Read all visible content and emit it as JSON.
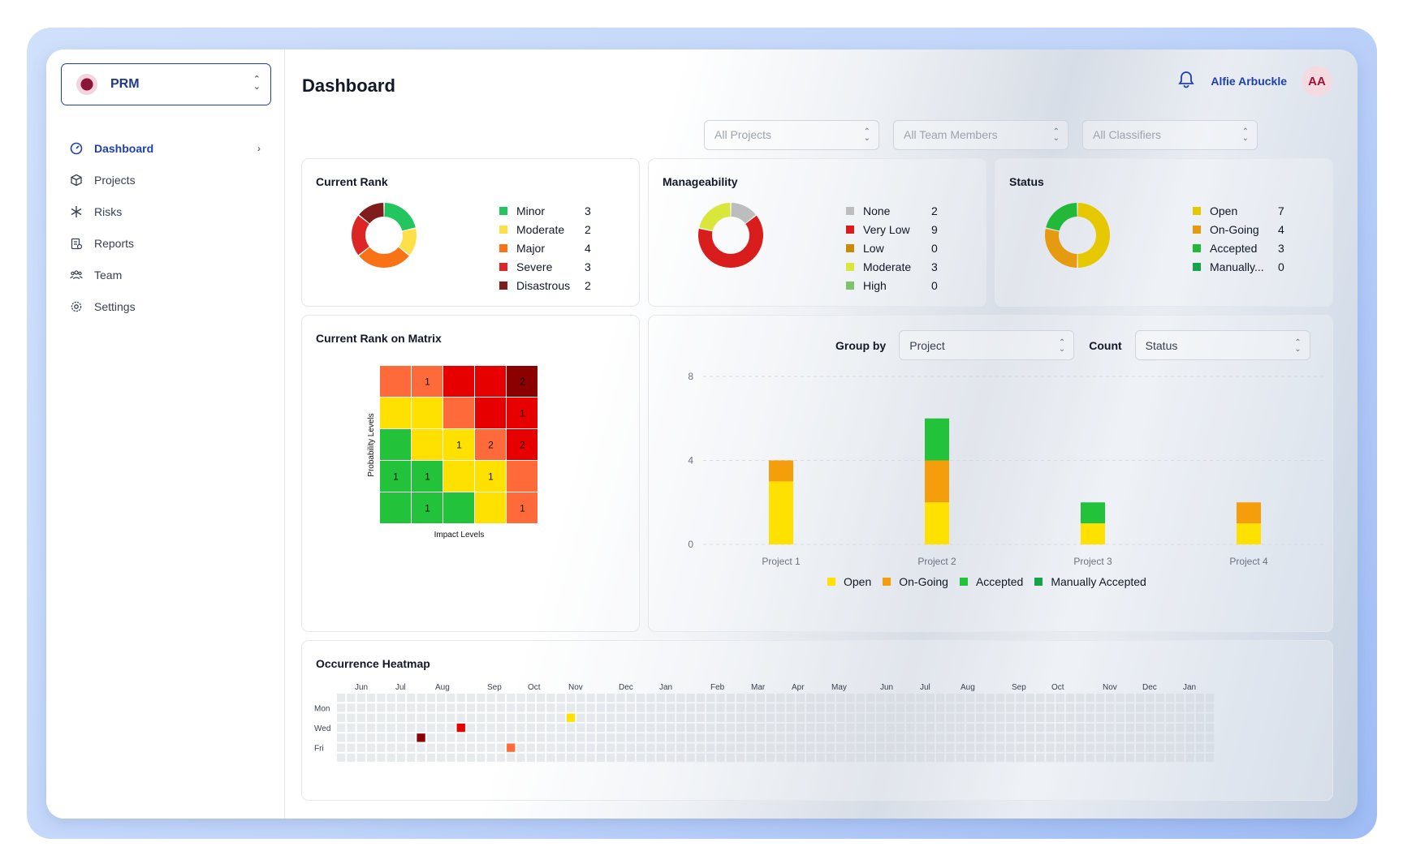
{
  "app": {
    "name": "PRM"
  },
  "sidebar": {
    "items": [
      {
        "label": "Dashboard",
        "icon": "gauge-icon",
        "active": true
      },
      {
        "label": "Projects",
        "icon": "cube-icon"
      },
      {
        "label": "Risks",
        "icon": "asterisk-icon"
      },
      {
        "label": "Reports",
        "icon": "report-icon"
      },
      {
        "label": "Team",
        "icon": "team-icon"
      },
      {
        "label": "Settings",
        "icon": "gear-icon"
      }
    ]
  },
  "header": {
    "title": "Dashboard",
    "user_name": "Alfie Arbuckle",
    "user_initials": "AA"
  },
  "filters": {
    "projects": "All Projects",
    "team_members": "All Team Members",
    "classifiers": "All Classifiers"
  },
  "cards": {
    "current_rank": {
      "title": "Current Rank",
      "legend": [
        {
          "label": "Minor",
          "value": 3,
          "color": "#22c55e"
        },
        {
          "label": "Moderate",
          "value": 2,
          "color": "#fde047"
        },
        {
          "label": "Major",
          "value": 4,
          "color": "#f97316"
        },
        {
          "label": "Severe",
          "value": 3,
          "color": "#dc2626"
        },
        {
          "label": "Disastrous",
          "value": 2,
          "color": "#7f1d1d"
        }
      ]
    },
    "manageability": {
      "title": "Manageability",
      "legend": [
        {
          "label": "None",
          "value": 2,
          "color": "#bdbdbd"
        },
        {
          "label": "Very Low",
          "value": 9,
          "color": "#d91d1d"
        },
        {
          "label": "Low",
          "value": 0,
          "color": "#ca8a04"
        },
        {
          "label": "Moderate",
          "value": 3,
          "color": "#d9e63a"
        },
        {
          "label": "High",
          "value": 0,
          "color": "#7cc36a"
        }
      ]
    },
    "status": {
      "title": "Status",
      "legend": [
        {
          "label": "Open",
          "value": 7,
          "color": "#e6c800"
        },
        {
          "label": "On-Going",
          "value": 4,
          "color": "#e69a10"
        },
        {
          "label": "Accepted",
          "value": 3,
          "color": "#22b83a"
        },
        {
          "label": "Manually...",
          "value": 0,
          "color": "#16a34a"
        }
      ]
    },
    "matrix": {
      "title": "Current Rank on Matrix",
      "xlabel": "Impact Levels",
      "ylabel": "Probability Levels",
      "colors": [
        [
          "#ff6a3a",
          "#ff6a3a",
          "#e60000",
          "#e60000",
          "#8b0000"
        ],
        [
          "#ffe100",
          "#ffe100",
          "#ff6a3a",
          "#e60000",
          "#e60000"
        ],
        [
          "#22c33a",
          "#ffe100",
          "#ffe100",
          "#ff6a3a",
          "#e60000"
        ],
        [
          "#22c33a",
          "#22c33a",
          "#ffe100",
          "#ffe100",
          "#ff6a3a"
        ],
        [
          "#22c33a",
          "#22c33a",
          "#22c33a",
          "#ffe100",
          "#ff6a3a"
        ]
      ],
      "counts": [
        [
          "",
          "1",
          "",
          "",
          "2"
        ],
        [
          "",
          "",
          "",
          "",
          "1"
        ],
        [
          "",
          "",
          "1",
          "2",
          "2"
        ],
        [
          "1",
          "1",
          "",
          "1",
          ""
        ],
        [
          "",
          "1",
          "",
          "",
          "1"
        ]
      ]
    },
    "occurrence": {
      "title": "Occurrence Heatmap",
      "months": [
        "Jun",
        "Jul",
        "Aug",
        "Sep",
        "Oct",
        "Nov",
        "Dec",
        "Jan",
        "Feb",
        "Mar",
        "Apr",
        "May",
        "Jun",
        "Jul",
        "Aug",
        "Sep",
        "Oct",
        "Nov",
        "Dec",
        "Jan"
      ],
      "days": [
        "Mon",
        "Wed",
        "Fri"
      ],
      "events": [
        {
          "week": 23,
          "day": 2,
          "color": "#ffe100"
        },
        {
          "week": 12,
          "day": 3,
          "color": "#e60000"
        },
        {
          "week": 8,
          "day": 4,
          "color": "#8b0000"
        },
        {
          "week": 17,
          "day": 5,
          "color": "#ff6a3a"
        }
      ]
    }
  },
  "group_controls": {
    "group_by_label": "Group by",
    "group_by_value": "Project",
    "count_label": "Count",
    "count_value": "Status"
  },
  "chart_data": {
    "type": "bar",
    "stacked": true,
    "categories": [
      "Project 1",
      "Project 2",
      "Project 3",
      "Project 4"
    ],
    "series": [
      {
        "name": "Open",
        "color": "#ffe100",
        "values": [
          3,
          2,
          1,
          1
        ]
      },
      {
        "name": "On-Going",
        "color": "#f59e0b",
        "values": [
          1,
          2,
          0,
          1
        ]
      },
      {
        "name": "Accepted",
        "color": "#22c33a",
        "values": [
          0,
          2,
          1,
          0
        ]
      },
      {
        "name": "Manually Accepted",
        "color": "#16a34a",
        "values": [
          0,
          0,
          0,
          0
        ]
      }
    ],
    "yticks": [
      0,
      4,
      8
    ],
    "ylim": [
      0,
      8
    ],
    "legend_position": "bottom"
  }
}
